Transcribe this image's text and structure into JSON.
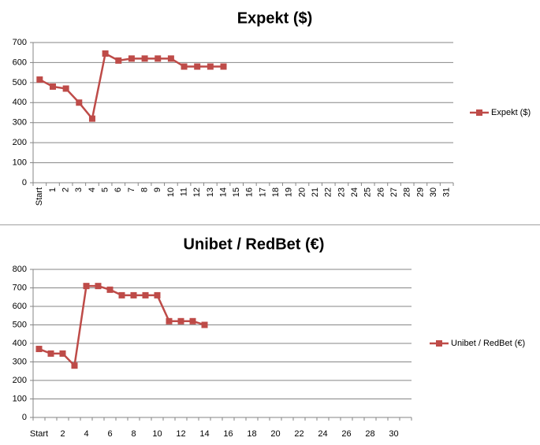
{
  "chart_data": [
    {
      "type": "line",
      "title": "Expekt ($)",
      "categories": [
        "Start",
        "1",
        "2",
        "3",
        "4",
        "5",
        "6",
        "7",
        "8",
        "9",
        "10",
        "11",
        "12",
        "13",
        "14",
        "15",
        "16",
        "17",
        "18",
        "19",
        "20",
        "21",
        "22",
        "23",
        "24",
        "25",
        "26",
        "27",
        "28",
        "29",
        "30",
        "31"
      ],
      "series": [
        {
          "name": "Expekt ($)",
          "color": "#be4b48",
          "values": [
            515,
            480,
            470,
            400,
            320,
            645,
            610,
            620,
            620,
            620,
            620,
            580,
            580,
            580,
            580,
            null,
            null,
            null,
            null,
            null,
            null,
            null,
            null,
            null,
            null,
            null,
            null,
            null,
            null,
            null,
            null,
            null
          ]
        }
      ],
      "ylim": [
        0,
        700
      ],
      "yticks": [
        0,
        100,
        200,
        300,
        400,
        500,
        600,
        700
      ],
      "grid": true,
      "legend": "right"
    },
    {
      "type": "line",
      "title": "Unibet / RedBet (€)",
      "categories": [
        "Start",
        null,
        "2",
        null,
        "4",
        null,
        "6",
        null,
        "8",
        null,
        "10",
        null,
        "12",
        null,
        "14",
        null,
        "16",
        null,
        "18",
        null,
        "20",
        null,
        "22",
        null,
        "24",
        null,
        "26",
        null,
        "28",
        null,
        "30",
        null
      ],
      "series": [
        {
          "name": "Unibet / RedBet (€)",
          "color": "#be4b48",
          "values": [
            370,
            345,
            345,
            280,
            710,
            710,
            690,
            660,
            660,
            660,
            660,
            520,
            520,
            520,
            500,
            null,
            null,
            null,
            null,
            null,
            null,
            null,
            null,
            null,
            null,
            null,
            null,
            null,
            null,
            null,
            null,
            null
          ]
        }
      ],
      "ylim": [
        0,
        800
      ],
      "yticks": [
        0,
        100,
        200,
        300,
        400,
        500,
        600,
        700,
        800
      ],
      "grid": true,
      "legend": "right"
    }
  ]
}
